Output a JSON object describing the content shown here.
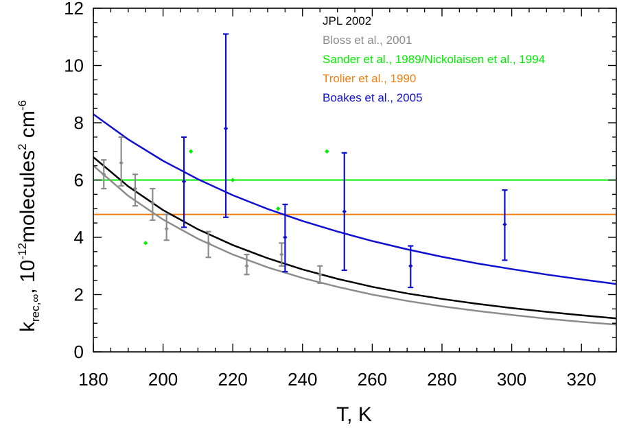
{
  "chart_data": {
    "type": "scatter",
    "title": "",
    "xlabel": "T, K",
    "ylabel": {
      "parts": [
        "k",
        "rec,∞",
        ",  10",
        "-12",
        "molecules",
        "2",
        " cm",
        "-6"
      ]
    },
    "xlim": [
      180,
      330
    ],
    "ylim": [
      0,
      12
    ],
    "x_ticks": [
      180,
      200,
      220,
      240,
      260,
      280,
      300,
      320
    ],
    "y_ticks": [
      0,
      2,
      4,
      6,
      8,
      10,
      12
    ],
    "grid": false,
    "legend_position": "top-right",
    "series": [
      {
        "name": "JPL 2002",
        "kind": "curve",
        "color": "#000000",
        "x": [
          180,
          190,
          200,
          210,
          220,
          230,
          240,
          250,
          260,
          270,
          280,
          290,
          300,
          310,
          320,
          330
        ],
        "y": [
          6.8,
          5.78,
          4.95,
          4.28,
          3.73,
          3.27,
          2.88,
          2.55,
          2.27,
          2.04,
          1.85,
          1.68,
          1.53,
          1.4,
          1.28,
          1.17
        ]
      },
      {
        "name": "Bloss et al., 2001",
        "kind": "points_with_errors",
        "color": "#8c8c8c",
        "points": [
          {
            "x": 183,
            "y": 6.2,
            "lo": 5.7,
            "hi": 6.7
          },
          {
            "x": 188,
            "y": 6.6,
            "lo": 5.8,
            "hi": 7.5
          },
          {
            "x": 192,
            "y": 5.7,
            "lo": 5.1,
            "hi": 6.2
          },
          {
            "x": 197,
            "y": 5.2,
            "lo": 4.6,
            "hi": 5.7
          },
          {
            "x": 201,
            "y": 4.3,
            "lo": 3.9,
            "hi": 4.8
          },
          {
            "x": 213,
            "y": 3.8,
            "lo": 3.3,
            "hi": 4.2
          },
          {
            "x": 224,
            "y": 3.0,
            "lo": 2.7,
            "hi": 3.4
          },
          {
            "x": 234,
            "y": 3.4,
            "lo": 3.0,
            "hi": 3.8
          },
          {
            "x": 245,
            "y": 2.7,
            "lo": 2.4,
            "hi": 3.0
          }
        ],
        "fit": {
          "x": [
            180,
            190,
            200,
            210,
            220,
            230,
            240,
            250,
            260,
            270,
            280,
            290,
            300,
            310,
            320,
            330
          ],
          "y": [
            6.5,
            5.45,
            4.62,
            3.95,
            3.4,
            2.95,
            2.58,
            2.27,
            2.0,
            1.78,
            1.59,
            1.43,
            1.29,
            1.16,
            1.05,
            0.95
          ]
        }
      },
      {
        "name": "Sander et al., 1989/Nickolaisen et al., 1994",
        "kind": "points_and_line",
        "color": "#00ee00",
        "points": [
          {
            "x": 195,
            "y": 3.8
          },
          {
            "x": 208,
            "y": 7.0
          },
          {
            "x": 220,
            "y": 6.0
          },
          {
            "x": 233,
            "y": 5.0
          },
          {
            "x": 247,
            "y": 7.0
          }
        ],
        "line_y": 6.0
      },
      {
        "name": "Trolier et al., 1990",
        "kind": "line",
        "color": "#f07f10",
        "line_y": 4.8
      },
      {
        "name": "Boakes et al., 2005",
        "kind": "points_with_errors",
        "color": "#1010d0",
        "points": [
          {
            "x": 206,
            "y": 5.95,
            "lo": 4.35,
            "hi": 7.5
          },
          {
            "x": 218,
            "y": 7.8,
            "lo": 4.7,
            "hi": 11.1
          },
          {
            "x": 235,
            "y": 4.0,
            "lo": 2.8,
            "hi": 5.15
          },
          {
            "x": 252,
            "y": 4.9,
            "lo": 2.85,
            "hi": 6.95
          },
          {
            "x": 271,
            "y": 3.0,
            "lo": 2.25,
            "hi": 3.7
          },
          {
            "x": 298,
            "y": 4.45,
            "lo": 3.2,
            "hi": 5.65
          }
        ],
        "fit": {
          "x": [
            180,
            190,
            200,
            210,
            220,
            230,
            240,
            250,
            260,
            270,
            280,
            290,
            300,
            310,
            320,
            330
          ],
          "y": [
            8.3,
            7.42,
            6.67,
            6.03,
            5.47,
            4.99,
            4.57,
            4.2,
            3.87,
            3.58,
            3.32,
            3.09,
            2.89,
            2.7,
            2.53,
            2.37
          ]
        }
      }
    ]
  }
}
